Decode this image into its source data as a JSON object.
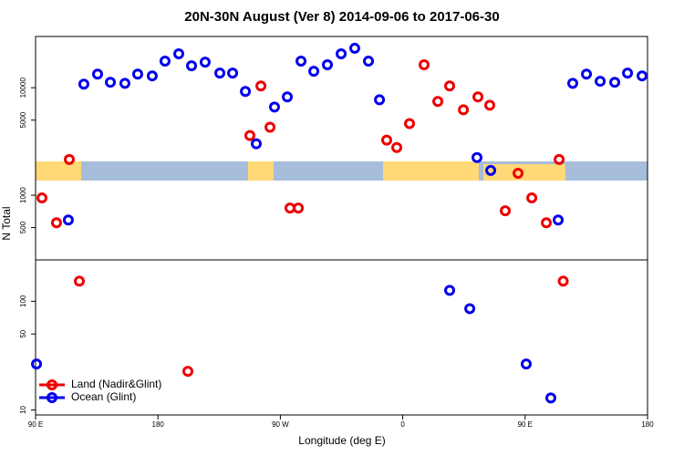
{
  "chart_data": [
    {
      "type": "scatter",
      "title": "20N-30N August (Ver 8)   2014-09-06 to 2017-06-30",
      "y_label": "N Total",
      "log": true,
      "xlim": [
        90,
        540
      ],
      "ylim": [
        250,
        30000
      ],
      "yticks": [
        500,
        1000,
        5000,
        10000
      ],
      "series": [
        {
          "name": "Land (Nadir&Glint)",
          "color": "#ee0000",
          "x": [
            114.8,
            255.7,
            247.6,
            262.4,
            348.2,
            355.6,
            365,
            375.7,
            385.8,
            394.5,
            404.6,
            415.3,
            424,
            444.8,
            475,
            94.7,
            105.4,
            277.1,
            283.2,
            435.4,
            454.9,
            465.6
          ],
          "values": [
            2150,
            10400,
            3590,
            4290,
            3260,
            2780,
            4640,
            16360,
            7450,
            10400,
            6240,
            8220,
            6880,
            1600,
            2150,
            943,
            554,
            759,
            759,
            716,
            943,
            554
          ]
        },
        {
          "name": "Ocean (Glint)",
          "color": "#0000ee",
          "x": [
            125.5,
            135.6,
            145,
            155.7,
            165.1,
            175.8,
            185.2,
            195.3,
            204.7,
            214.7,
            225.5,
            234.9,
            244.3,
            252.3,
            265.7,
            275.1,
            285.2,
            294.6,
            304.6,
            314.7,
            324.7,
            334.8,
            342.9,
            414.6,
            424.7,
            485,
            495.1,
            505.2,
            515.9,
            525.3,
            536,
            114.1,
            474.3
          ],
          "values": [
            10800,
            13400,
            11250,
            11000,
            13400,
            12900,
            17700,
            20700,
            16000,
            17300,
            13700,
            13700,
            9250,
            3010,
            6620,
            8220,
            17700,
            14250,
            16360,
            20700,
            23300,
            17700,
            7740,
            2240,
            1700,
            11000,
            13400,
            11500,
            11250,
            13700,
            12900,
            588,
            588
          ]
        }
      ]
    },
    {
      "type": "scatter",
      "x_label": "Longitude (deg E)",
      "log": true,
      "xlim": [
        90,
        540
      ],
      "ylim": [
        9,
        240
      ],
      "xticks": [
        {
          "value": 90,
          "label": "90 E"
        },
        180,
        {
          "value": 270,
          "label": "90 W"
        },
        {
          "value": 360,
          "label": "0"
        },
        {
          "value": 450,
          "label": "90 E"
        },
        {
          "value": 540,
          "label": "180"
        }
      ],
      "yticks": [
        10,
        50,
        100
      ],
      "legend": "lower left",
      "series": [
        {
          "name": "Land (Nadir&Glint)",
          "color": "#ee0000",
          "x": [
            122.2,
            202,
            478
          ],
          "values": [
            153,
            22.7,
            153
          ]
        },
        {
          "name": "Ocean (Glint)",
          "color": "#0000ee",
          "x": [
            90.7,
            394.5,
            409.3,
            450.8,
            468.9
          ],
          "values": [
            26.5,
            126,
            85.5,
            26.5,
            12.9
          ]
        }
      ]
    }
  ]
}
